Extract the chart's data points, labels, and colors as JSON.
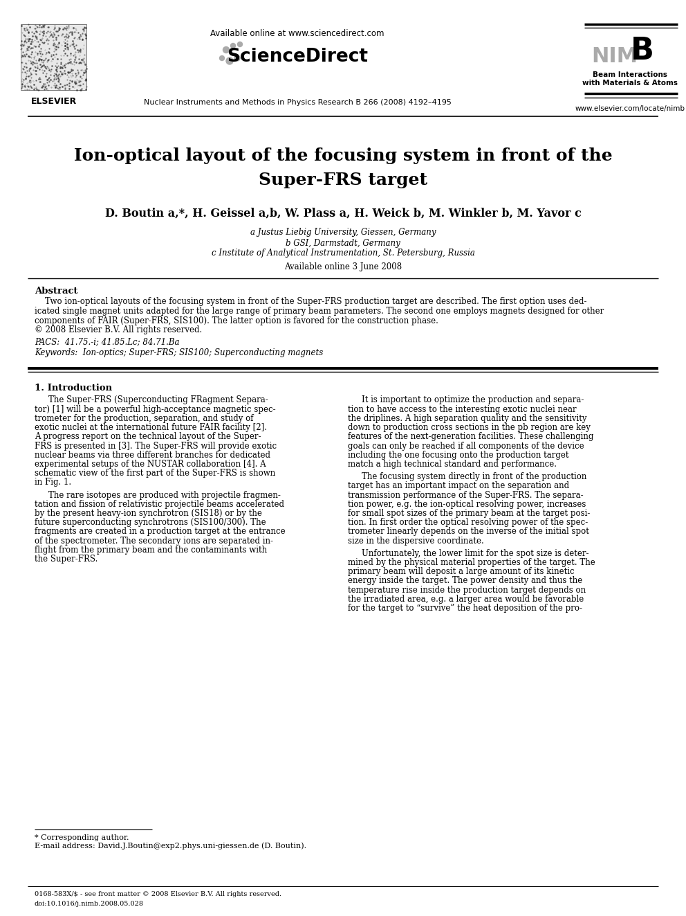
{
  "bg_color": "#ffffff",
  "header_line1": "Available online at www.sciencedirect.com",
  "journal_line": "Nuclear Instruments and Methods in Physics Research B 266 (2008) 4192–4195",
  "nimb_text1": "NIM",
  "nimb_text2": "B",
  "nimb_sub1": "Beam Interactions",
  "nimb_sub2": "with Materials & Atoms",
  "elsevier_url": "www.elsevier.com/locate/nimb",
  "title_line1": "Ion-optical layout of the focusing system in front of the",
  "title_line2": "Super-FRS target",
  "authors": "D. Boutin a,*, H. Geissel a,b, W. Plass a, H. Weick b, M. Winkler b, M. Yavor c",
  "affil_a": "a Justus Liebig University, Giessen, Germany",
  "affil_b": "b GSI, Darmstadt, Germany",
  "affil_c": "c Institute of Analytical Instrumentation, St. Petersburg, Russia",
  "available_online": "Available online 3 June 2008",
  "abstract_label": "Abstract",
  "pacs_label": "PACS:",
  "pacs_val": "41.75.-i; 41.85.Lc; 84.71.Ba",
  "keywords_label": "Keywords:",
  "keywords_val": "Ion-optics; Super-FRS; SIS100; Superconducting magnets",
  "section1_title": "1. Introduction",
  "footer_line1": "0168-583X/$ - see front matter © 2008 Elsevier B.V. All rights reserved.",
  "footer_line2": "doi:10.1016/j.nimb.2008.05.028",
  "sciencedirect_text": "ScienceDirect",
  "elsevier_label": "ELSEVIER",
  "footnote_star": "* Corresponding author.",
  "footnote_email": "E-mail address: David.J.Boutin@exp2.phys.uni-giessen.de (D. Boutin).",
  "abstract_lines": [
    "    Two ion-optical layouts of the focusing system in front of the Super-FRS production target are described. The first option uses ded-",
    "icated single magnet units adapted for the large range of primary beam parameters. The second one employs magnets designed for other",
    "components of FAIR (Super-FRS, SIS100). The latter option is favored for the construction phase.",
    "© 2008 Elsevier B.V. All rights reserved."
  ],
  "col1_lines1": [
    "The Super-FRS (Superconducting FRagment Separa-",
    "tor) [1] will be a powerful high-acceptance magnetic spec-",
    "trometer for the production, separation, and study of",
    "exotic nuclei at the international future FAIR facility [2].",
    "A progress report on the technical layout of the Super-",
    "FRS is presented in [3]. The Super-FRS will provide exotic",
    "nuclear beams via three different branches for dedicated",
    "experimental setups of the NUSTAR collaboration [4]. A",
    "schematic view of the first part of the Super-FRS is shown",
    "in Fig. 1."
  ],
  "col1_lines2": [
    "The rare isotopes are produced with projectile fragmen-",
    "tation and fission of relativistic projectile beams accelerated",
    "by the present heavy-ion synchrotron (SIS18) or by the",
    "future superconducting synchrotrons (SIS100/300). The",
    "fragments are created in a production target at the entrance",
    "of the spectrometer. The secondary ions are separated in-",
    "flight from the primary beam and the contaminants with",
    "the Super-FRS."
  ],
  "col2_lines1": [
    "It is important to optimize the production and separa-",
    "tion to have access to the interesting exotic nuclei near",
    "the driplines. A high separation quality and the sensitivity",
    "down to production cross sections in the pb region are key",
    "features of the next-generation facilities. These challenging",
    "goals can only be reached if all components of the device",
    "including the one focusing onto the production target",
    "match a high technical standard and performance."
  ],
  "col2_lines2": [
    "The focusing system directly in front of the production",
    "target has an important impact on the separation and",
    "transmission performance of the Super-FRS. The separa-",
    "tion power, e.g. the ion-optical resolving power, increases",
    "for small spot sizes of the primary beam at the target posi-",
    "tion. In first order the optical resolving power of the spec-",
    "trometer linearly depends on the inverse of the initial spot",
    "size in the dispersive coordinate."
  ],
  "col2_lines3": [
    "Unfortunately, the lower limit for the spot size is deter-",
    "mined by the physical material properties of the target. The",
    "primary beam will deposit a large amount of its kinetic",
    "energy inside the target. The power density and thus the",
    "temperature rise inside the production target depends on",
    "the irradiated area, e.g. a larger area would be favorable",
    "for the target to “survive” the heat deposition of the pro-"
  ]
}
